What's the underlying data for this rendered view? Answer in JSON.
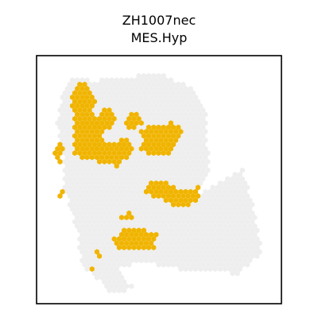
{
  "chart_data": {
    "type": "scatter",
    "title": [
      "ZH1007nec",
      "MES.Hyp"
    ],
    "xlabel": "",
    "ylabel": "",
    "grid": false,
    "legend": "none",
    "series": [
      {
        "label": "background",
        "color": "#eeeeee",
        "regions": [
          [
            [
              0.13,
              0.09
            ],
            [
              0.24,
              0.1
            ],
            [
              0.5,
              0.07
            ],
            [
              0.63,
              0.13
            ],
            [
              0.69,
              0.22
            ],
            [
              0.69,
              0.32
            ],
            [
              0.71,
              0.46
            ],
            [
              0.65,
              0.56
            ],
            [
              0.74,
              0.52
            ],
            [
              0.84,
              0.46
            ],
            [
              0.89,
              0.62
            ],
            [
              0.92,
              0.8
            ],
            [
              0.82,
              0.88
            ],
            [
              0.58,
              0.86
            ],
            [
              0.42,
              0.83
            ],
            [
              0.33,
              0.86
            ],
            [
              0.4,
              0.94
            ],
            [
              0.31,
              0.96
            ],
            [
              0.19,
              0.85
            ],
            [
              0.17,
              0.74
            ],
            [
              0.15,
              0.64
            ],
            [
              0.11,
              0.54
            ],
            [
              0.11,
              0.38
            ],
            [
              0.08,
              0.27
            ],
            [
              0.1,
              0.17
            ]
          ]
        ]
      },
      {
        "label": "MES.Hyp",
        "color": "#f0b400",
        "regions": [
          [
            [
              0.14,
              0.15
            ],
            [
              0.19,
              0.1
            ],
            [
              0.24,
              0.17
            ],
            [
              0.23,
              0.26
            ],
            [
              0.3,
              0.2
            ],
            [
              0.32,
              0.26
            ],
            [
              0.27,
              0.33
            ],
            [
              0.29,
              0.36
            ],
            [
              0.36,
              0.33
            ],
            [
              0.4,
              0.38
            ],
            [
              0.33,
              0.45
            ],
            [
              0.25,
              0.43
            ],
            [
              0.15,
              0.4
            ],
            [
              0.15,
              0.27
            ]
          ],
          [
            [
              0.36,
              0.28
            ],
            [
              0.39,
              0.23
            ],
            [
              0.42,
              0.24
            ],
            [
              0.43,
              0.28
            ],
            [
              0.39,
              0.3
            ]
          ],
          [
            [
              0.42,
              0.3
            ],
            [
              0.48,
              0.28
            ],
            [
              0.56,
              0.27
            ],
            [
              0.6,
              0.31
            ],
            [
              0.56,
              0.39
            ],
            [
              0.47,
              0.41
            ],
            [
              0.42,
              0.38
            ],
            [
              0.44,
              0.34
            ]
          ],
          [
            [
              0.44,
              0.52
            ],
            [
              0.48,
              0.5
            ],
            [
              0.53,
              0.51
            ],
            [
              0.58,
              0.54
            ],
            [
              0.66,
              0.53
            ],
            [
              0.66,
              0.58
            ],
            [
              0.6,
              0.62
            ],
            [
              0.55,
              0.6
            ],
            [
              0.48,
              0.57
            ],
            [
              0.44,
              0.56
            ]
          ],
          [
            [
              0.3,
              0.74
            ],
            [
              0.36,
              0.7
            ],
            [
              0.42,
              0.69
            ],
            [
              0.49,
              0.72
            ],
            [
              0.48,
              0.78
            ],
            [
              0.4,
              0.79
            ],
            [
              0.32,
              0.77
            ]
          ],
          [
            [
              0.33,
              0.64
            ],
            [
              0.39,
              0.63
            ],
            [
              0.39,
              0.66
            ],
            [
              0.34,
              0.67
            ]
          ],
          [
            [
              0.08,
              0.34
            ],
            [
              0.11,
              0.36
            ],
            [
              0.1,
              0.43
            ],
            [
              0.07,
              0.42
            ]
          ],
          [
            [
              0.09,
              0.54
            ],
            [
              0.11,
              0.54
            ],
            [
              0.11,
              0.58
            ],
            [
              0.09,
              0.58
            ]
          ],
          [
            [
              0.23,
              0.79
            ],
            [
              0.26,
              0.78
            ],
            [
              0.26,
              0.81
            ],
            [
              0.24,
              0.81
            ]
          ],
          [
            [
              0.21,
              0.85
            ],
            [
              0.24,
              0.85
            ],
            [
              0.24,
              0.87
            ],
            [
              0.21,
              0.87
            ]
          ]
        ]
      }
    ]
  }
}
